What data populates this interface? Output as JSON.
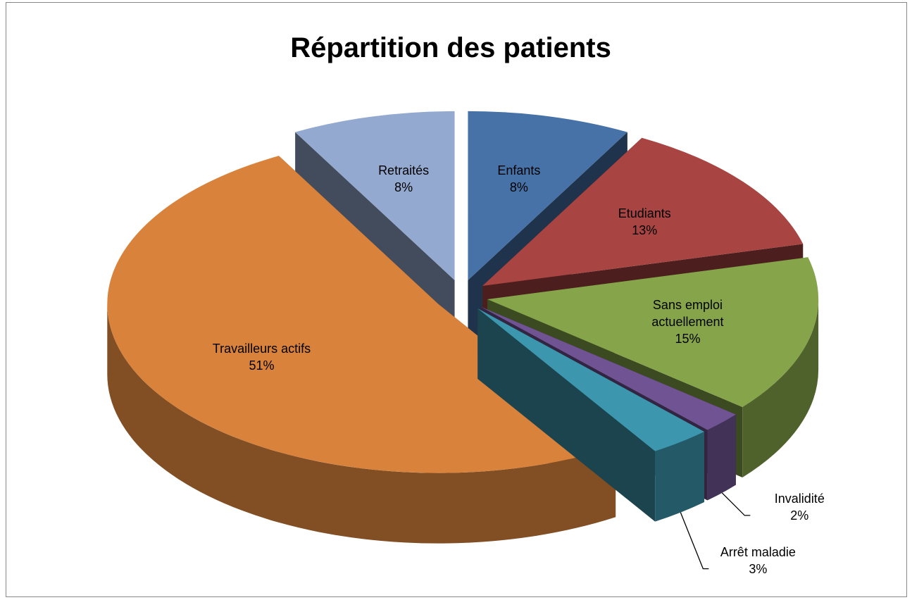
{
  "chart_data": {
    "type": "pie3d",
    "title": "Répartition des patients",
    "categories": [
      "Enfants",
      "Etudiants",
      "Sans emploi actuellement",
      "Invalidité",
      "Arrêt maladie",
      "Travailleurs actifs",
      "Retraités"
    ],
    "values": [
      8,
      13,
      15,
      2,
      3,
      51,
      8
    ],
    "value_labels": [
      "8%",
      "13%",
      "15%",
      "2%",
      "3%",
      "51%",
      "8%"
    ],
    "colors": [
      "#4672a8",
      "#a84442",
      "#86a44a",
      "#6f5393",
      "#3c96ae",
      "#d9823b",
      "#93a9cf"
    ]
  }
}
